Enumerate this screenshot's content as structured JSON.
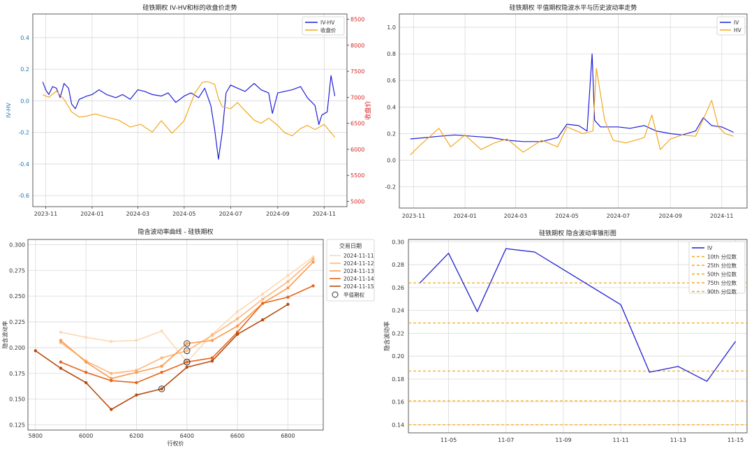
{
  "chart_data": [
    {
      "type": "line",
      "title": "硅铁期权 IV-HV和标的收盘价走势",
      "xlabel": "",
      "ylabel": "IV-HV",
      "y2label": "收盘价",
      "xlim": [
        "2023-10-15",
        "2024-12-01"
      ],
      "ylim": [
        -0.67,
        0.55
      ],
      "y2lim": [
        4900,
        8600
      ],
      "x_ticks": [
        "2023-11",
        "2024-01",
        "2024-03",
        "2024-05",
        "2024-07",
        "2024-09",
        "2024-11"
      ],
      "y_ticks": [
        -0.6,
        -0.4,
        -0.2,
        0.0,
        0.2,
        0.4
      ],
      "y_tick_labels": [
        "-0.6",
        "-0.4",
        "-0.2",
        "0.0",
        "0.2",
        "0.4"
      ],
      "y2_ticks": [
        5000,
        5500,
        6000,
        6500,
        7000,
        7500,
        8000,
        8500
      ],
      "y2_tick_labels": [
        "5000",
        "5500",
        "6000",
        "6500",
        "7000",
        "7500",
        "8000",
        "8500"
      ],
      "grid": true,
      "legend": "top-right",
      "colors": {
        "IV-HV": "#1f1fd6",
        "收盘价": "#f2a81d",
        "y_axis": "#1f77b4",
        "y2_axis": "#d62728"
      },
      "series": [
        {
          "name": "IV-HV",
          "axis": "left",
          "x": [
            "2023-10-28",
            "2023-11-01",
            "2023-11-05",
            "2023-11-10",
            "2023-11-15",
            "2023-11-20",
            "2023-11-25",
            "2023-12-01",
            "2023-12-05",
            "2023-12-10",
            "2023-12-15",
            "2023-12-20",
            "2023-12-25",
            "2024-01-01",
            "2024-01-10",
            "2024-01-20",
            "2024-02-01",
            "2024-02-10",
            "2024-02-20",
            "2024-03-01",
            "2024-03-10",
            "2024-03-20",
            "2024-04-01",
            "2024-04-10",
            "2024-04-20",
            "2024-05-01",
            "2024-05-10",
            "2024-05-20",
            "2024-05-28",
            "2024-06-05",
            "2024-06-10",
            "2024-06-15",
            "2024-06-20",
            "2024-06-25",
            "2024-07-01",
            "2024-07-10",
            "2024-07-20",
            "2024-08-01",
            "2024-08-10",
            "2024-08-20",
            "2024-08-25",
            "2024-09-01",
            "2024-09-10",
            "2024-09-20",
            "2024-10-01",
            "2024-10-10",
            "2024-10-20",
            "2024-10-25",
            "2024-10-29",
            "2024-11-05",
            "2024-11-10",
            "2024-11-15"
          ],
          "values": [
            0.12,
            0.07,
            0.04,
            0.09,
            0.08,
            0.02,
            0.11,
            0.08,
            -0.02,
            -0.05,
            0.01,
            0.02,
            0.03,
            0.04,
            0.07,
            0.04,
            0.02,
            0.04,
            0.01,
            0.07,
            0.06,
            0.04,
            0.03,
            0.05,
            -0.01,
            0.03,
            0.05,
            0.02,
            0.08,
            -0.03,
            -0.18,
            -0.37,
            -0.2,
            0.05,
            0.1,
            0.08,
            0.06,
            0.11,
            0.07,
            0.05,
            -0.08,
            0.05,
            0.06,
            0.07,
            0.09,
            0.02,
            -0.03,
            -0.15,
            -0.09,
            -0.07,
            0.16,
            0.03
          ]
        },
        {
          "name": "收盘价",
          "axis": "right",
          "x": [
            "2023-10-28",
            "2023-11-05",
            "2023-11-15",
            "2023-11-25",
            "2023-12-05",
            "2023-12-15",
            "2023-12-25",
            "2024-01-05",
            "2024-01-20",
            "2024-02-05",
            "2024-02-20",
            "2024-03-05",
            "2024-03-20",
            "2024-04-01",
            "2024-04-15",
            "2024-05-01",
            "2024-05-15",
            "2024-05-25",
            "2024-06-01",
            "2024-06-10",
            "2024-06-15",
            "2024-06-20",
            "2024-07-01",
            "2024-07-10",
            "2024-07-20",
            "2024-08-01",
            "2024-08-10",
            "2024-08-20",
            "2024-09-01",
            "2024-09-10",
            "2024-09-20",
            "2024-10-01",
            "2024-10-10",
            "2024-10-20",
            "2024-11-01",
            "2024-11-15"
          ],
          "values": [
            7050,
            7000,
            7120,
            6960,
            6720,
            6620,
            6640,
            6680,
            6620,
            6560,
            6430,
            6480,
            6330,
            6550,
            6310,
            6550,
            7080,
            7290,
            7300,
            7250,
            6980,
            6820,
            6780,
            6900,
            6740,
            6560,
            6500,
            6600,
            6460,
            6320,
            6260,
            6400,
            6460,
            6380,
            6480,
            6230
          ]
        }
      ]
    },
    {
      "type": "line",
      "title": "硅铁期权 平值期权隐波水平与历史波动率走势",
      "xlabel": "",
      "ylabel": "",
      "xlim": [
        "2023-10-15",
        "2024-12-01"
      ],
      "ylim": [
        -0.36,
        1.1
      ],
      "x_ticks": [
        "2023-11",
        "2024-01",
        "2024-03",
        "2024-05",
        "2024-07",
        "2024-09",
        "2024-11"
      ],
      "y_ticks": [
        -0.2,
        0.0,
        0.2,
        0.4,
        0.6,
        0.8,
        1.0
      ],
      "y_tick_labels": [
        "-0.2",
        "0.0",
        "0.2",
        "0.4",
        "0.6",
        "0.8",
        "1.0"
      ],
      "grid": true,
      "legend": "top-right",
      "colors": {
        "IV": "#1f1fd6",
        "HV": "#f2a81d"
      },
      "series": [
        {
          "name": "IV",
          "x": [
            "2023-10-28",
            "2023-11-15",
            "2023-12-01",
            "2023-12-20",
            "2024-01-10",
            "2024-02-01",
            "2024-02-20",
            "2024-03-10",
            "2024-04-01",
            "2024-04-20",
            "2024-05-01",
            "2024-05-15",
            "2024-05-25",
            "2024-05-31",
            "2024-06-03",
            "2024-06-10",
            "2024-06-20",
            "2024-07-01",
            "2024-07-15",
            "2024-08-01",
            "2024-08-15",
            "2024-09-01",
            "2024-09-15",
            "2024-10-01",
            "2024-10-10",
            "2024-10-20",
            "2024-11-01",
            "2024-11-15"
          ],
          "values": [
            0.16,
            0.17,
            0.18,
            0.19,
            0.18,
            0.17,
            0.15,
            0.14,
            0.14,
            0.17,
            0.27,
            0.26,
            0.22,
            0.8,
            0.3,
            0.25,
            0.25,
            0.25,
            0.24,
            0.26,
            0.22,
            0.2,
            0.19,
            0.22,
            0.32,
            0.26,
            0.25,
            0.21
          ]
        },
        {
          "name": "HV",
          "x": [
            "2023-10-28",
            "2023-11-10",
            "2023-12-01",
            "2023-12-15",
            "2024-01-01",
            "2024-01-20",
            "2024-02-05",
            "2024-02-20",
            "2024-03-10",
            "2024-04-01",
            "2024-04-20",
            "2024-05-01",
            "2024-05-20",
            "2024-06-01",
            "2024-06-05",
            "2024-06-15",
            "2024-06-25",
            "2024-07-10",
            "2024-08-01",
            "2024-08-10",
            "2024-08-20",
            "2024-09-01",
            "2024-09-15",
            "2024-10-01",
            "2024-10-20",
            "2024-10-28",
            "2024-11-05",
            "2024-11-15"
          ],
          "values": [
            0.04,
            0.12,
            0.24,
            0.1,
            0.19,
            0.08,
            0.13,
            0.16,
            0.06,
            0.15,
            0.1,
            0.25,
            0.2,
            0.22,
            0.69,
            0.3,
            0.15,
            0.13,
            0.17,
            0.34,
            0.08,
            0.16,
            0.19,
            0.18,
            0.45,
            0.25,
            0.2,
            0.18
          ]
        }
      ]
    },
    {
      "type": "line",
      "title": "隐含波动率曲线 - 硅铁期权",
      "xlabel": "行权价",
      "ylabel": "隐含波动率",
      "xlim": [
        5770,
        6940
      ],
      "ylim": [
        0.12,
        0.305
      ],
      "x_ticks": [
        5800,
        6000,
        6200,
        6400,
        6600,
        6800
      ],
      "x_tick_labels": [
        "5800",
        "6000",
        "6200",
        "6400",
        "6600",
        "6800"
      ],
      "y_ticks": [
        0.125,
        0.15,
        0.175,
        0.2,
        0.225,
        0.25,
        0.275,
        0.3
      ],
      "y_tick_labels": [
        "0.125",
        "0.150",
        "0.175",
        "0.200",
        "0.225",
        "0.250",
        "0.275",
        "0.300"
      ],
      "grid": true,
      "legend": "right",
      "legend_title": "交易日期",
      "atm_label": "平值期权",
      "series": [
        {
          "name": "2024-11-11",
          "color": "#fdd9b5",
          "x": [
            5900,
            6000,
            6100,
            6200,
            6300,
            6400,
            6500,
            6600,
            6700,
            6800,
            6900
          ],
          "values": [
            0.215,
            0.21,
            0.206,
            0.207,
            0.216,
            0.186,
            0.213,
            0.235,
            0.252,
            0.27,
            0.288
          ],
          "atm": [
            6400,
            0.186
          ]
        },
        {
          "name": "2024-11-12",
          "color": "#fdb77a",
          "x": [
            5900,
            6000,
            6100,
            6200,
            6300,
            6400,
            6500,
            6600,
            6700,
            6800,
            6900
          ],
          "values": [
            0.205,
            0.187,
            0.175,
            0.178,
            0.19,
            0.197,
            0.212,
            0.228,
            0.247,
            0.264,
            0.286
          ],
          "atm": [
            6400,
            0.197
          ]
        },
        {
          "name": "2024-11-13",
          "color": "#fc9a4a",
          "x": [
            5900,
            6000,
            6100,
            6200,
            6300,
            6400,
            6500,
            6600,
            6700,
            6800,
            6900
          ],
          "values": [
            0.207,
            0.186,
            0.17,
            0.176,
            0.182,
            0.204,
            0.207,
            0.221,
            0.243,
            0.258,
            0.283
          ],
          "atm": [
            6400,
            0.204
          ]
        },
        {
          "name": "2024-11-14",
          "color": "#e8641a",
          "x": [
            5900,
            6000,
            6100,
            6200,
            6300,
            6400,
            6500,
            6600,
            6700,
            6800,
            6900
          ],
          "values": [
            0.186,
            0.176,
            0.168,
            0.166,
            0.176,
            0.186,
            0.19,
            0.215,
            0.243,
            0.249,
            0.26
          ],
          "atm": [
            6400,
            0.186
          ]
        },
        {
          "name": "2024-11-15",
          "color": "#b54a0e",
          "x": [
            5800,
            5900,
            6000,
            6100,
            6200,
            6300,
            6400,
            6500,
            6600,
            6700,
            6800
          ],
          "values": [
            0.197,
            0.18,
            0.166,
            0.14,
            0.154,
            0.16,
            0.181,
            0.187,
            0.213,
            0.227,
            0.242
          ],
          "atm": [
            6300,
            0.16
          ]
        }
      ]
    },
    {
      "type": "line",
      "title": "硅铁期权 隐含波动率锥形图",
      "xlabel": "",
      "ylabel": "隐含波动率",
      "xlim": [
        "2024-11-03.6",
        "2024-11-15.4"
      ],
      "ylim": [
        0.133,
        0.302
      ],
      "x_ticks": [
        "2024-11-05",
        "2024-11-07",
        "2024-11-09",
        "2024-11-11",
        "2024-11-13",
        "2024-11-15"
      ],
      "x_tick_labels": [
        "11-05",
        "11-07",
        "11-09",
        "11-11",
        "11-13",
        "11-15"
      ],
      "y_ticks": [
        0.14,
        0.16,
        0.18,
        0.2,
        0.22,
        0.24,
        0.26,
        0.28,
        0.3
      ],
      "y_tick_labels": [
        "0.14",
        "0.16",
        "0.18",
        "0.20",
        "0.22",
        "0.24",
        "0.26",
        "0.28",
        "0.30"
      ],
      "grid": true,
      "legend": "top-right",
      "colors": {
        "IV": "#1f1fd6",
        "percentile": "#f2a81d"
      },
      "series": [
        {
          "name": "IV",
          "x": [
            "2024-11-04",
            "2024-11-05",
            "2024-11-06",
            "2024-11-07",
            "2024-11-08",
            "2024-11-11",
            "2024-11-12",
            "2024-11-13",
            "2024-11-14",
            "2024-11-15"
          ],
          "values": [
            0.264,
            0.29,
            0.239,
            0.294,
            0.291,
            0.245,
            0.186,
            0.191,
            0.178,
            0.213
          ]
        }
      ],
      "percentiles": [
        {
          "name": "10th 分位数",
          "value": 0.14
        },
        {
          "name": "25th 分位数",
          "value": 0.161
        },
        {
          "name": "50th 分位数",
          "value": 0.187
        },
        {
          "name": "75th 分位数",
          "value": 0.229
        },
        {
          "name": "90th 分位数",
          "value": 0.264
        }
      ]
    }
  ]
}
